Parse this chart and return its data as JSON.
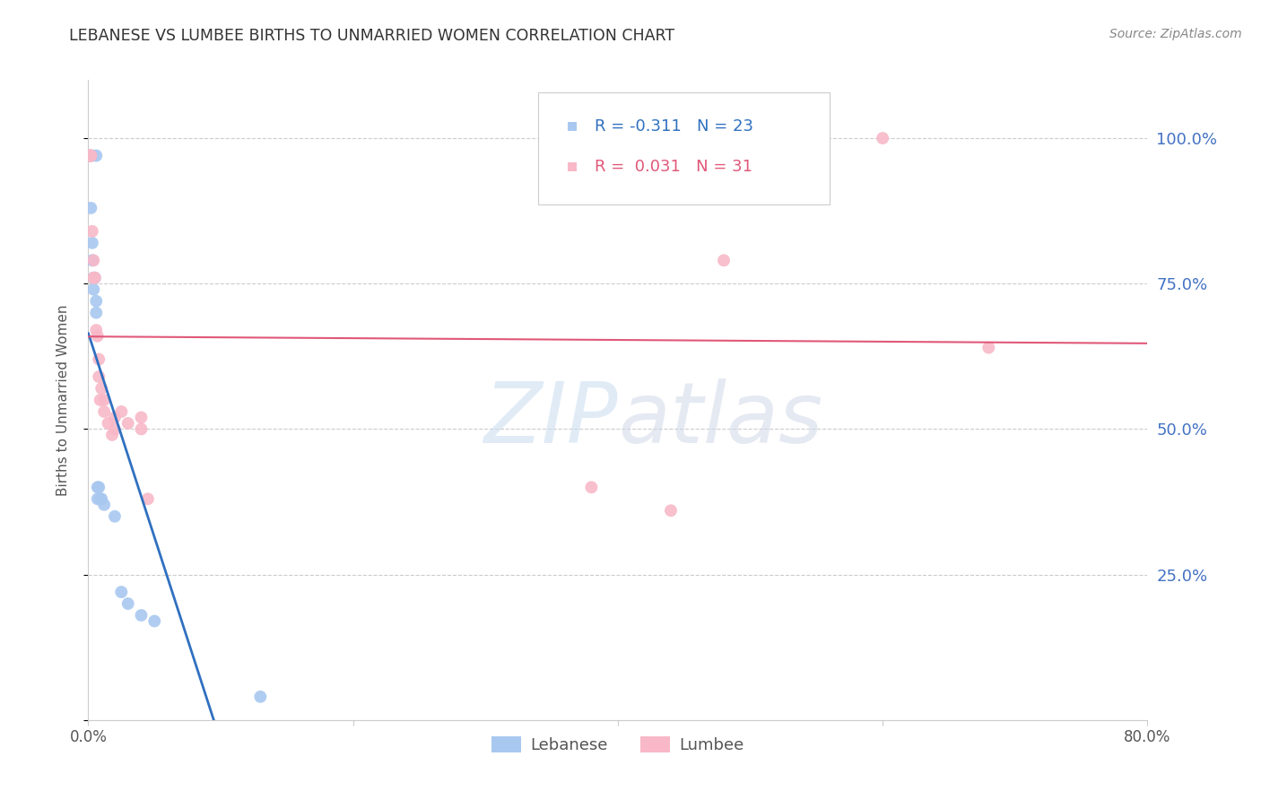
{
  "title": "LEBANESE VS LUMBEE BIRTHS TO UNMARRIED WOMEN CORRELATION CHART",
  "source": "Source: ZipAtlas.com",
  "ylabel": "Births to Unmarried Women",
  "ytick_labels": [
    "",
    "25.0%",
    "50.0%",
    "75.0%",
    "100.0%"
  ],
  "legend_r_lebanese": "-0.311",
  "legend_n_lebanese": "23",
  "legend_r_lumbee": "0.031",
  "legend_n_lumbee": "31",
  "lebanese_color": "#A8C8F0",
  "lumbee_color": "#F8B8C8",
  "trendline_lebanese_color": "#3070C0",
  "trendline_lumbee_color": "#E05878",
  "watermark_zip": "ZIP",
  "watermark_atlas": "atlas",
  "lebanese_pts": [
    [
      0.001,
      0.97
    ],
    [
      0.003,
      0.97
    ],
    [
      0.006,
      0.97
    ],
    [
      0.002,
      0.88
    ],
    [
      0.003,
      0.82
    ],
    [
      0.003,
      0.79
    ],
    [
      0.004,
      0.76
    ],
    [
      0.004,
      0.74
    ],
    [
      0.005,
      0.76
    ],
    [
      0.006,
      0.72
    ],
    [
      0.006,
      0.7
    ],
    [
      0.007,
      0.4
    ],
    [
      0.007,
      0.38
    ],
    [
      0.008,
      0.4
    ],
    [
      0.009,
      0.38
    ],
    [
      0.01,
      0.38
    ],
    [
      0.012,
      0.37
    ],
    [
      0.02,
      0.35
    ],
    [
      0.025,
      0.22
    ],
    [
      0.03,
      0.2
    ],
    [
      0.04,
      0.18
    ],
    [
      0.05,
      0.17
    ],
    [
      0.13,
      0.04
    ]
  ],
  "lumbee_pts": [
    [
      0.001,
      0.97
    ],
    [
      0.001,
      0.97
    ],
    [
      0.001,
      0.97
    ],
    [
      0.002,
      0.97
    ],
    [
      0.002,
      0.97
    ],
    [
      0.003,
      0.84
    ],
    [
      0.004,
      0.79
    ],
    [
      0.004,
      0.76
    ],
    [
      0.005,
      0.76
    ],
    [
      0.006,
      0.67
    ],
    [
      0.007,
      0.66
    ],
    [
      0.008,
      0.62
    ],
    [
      0.008,
      0.59
    ],
    [
      0.009,
      0.55
    ],
    [
      0.01,
      0.57
    ],
    [
      0.012,
      0.55
    ],
    [
      0.012,
      0.53
    ],
    [
      0.015,
      0.51
    ],
    [
      0.018,
      0.49
    ],
    [
      0.02,
      0.52
    ],
    [
      0.02,
      0.5
    ],
    [
      0.025,
      0.53
    ],
    [
      0.03,
      0.51
    ],
    [
      0.04,
      0.52
    ],
    [
      0.04,
      0.5
    ],
    [
      0.045,
      0.38
    ],
    [
      0.38,
      0.4
    ],
    [
      0.44,
      0.36
    ],
    [
      0.48,
      0.79
    ],
    [
      0.6,
      1.0
    ],
    [
      0.68,
      0.64
    ]
  ],
  "xmin": 0.0,
  "xmax": 0.8,
  "ymin": 0.0,
  "ymax": 1.1,
  "trendline_solid_end": 0.38
}
